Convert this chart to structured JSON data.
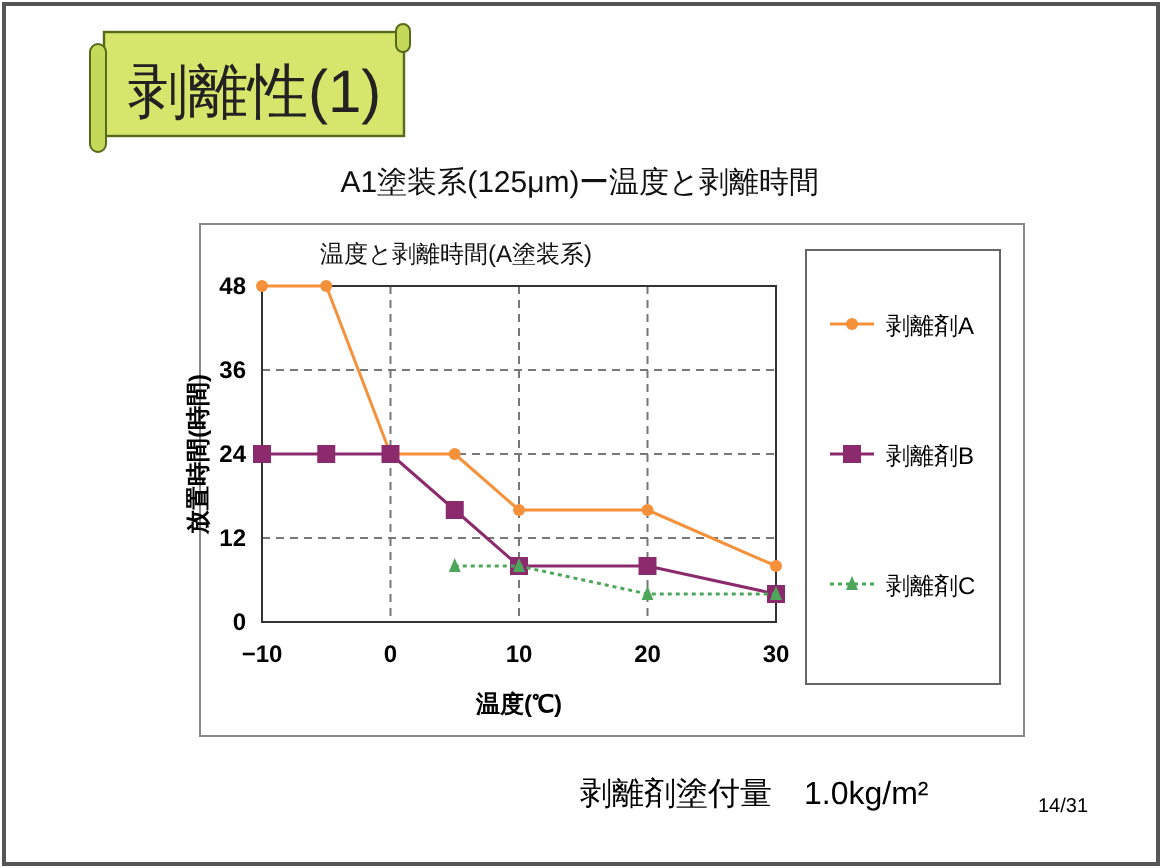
{
  "chart_data": {
    "type": "line",
    "title": "温度と剥離時間(A塗装系)",
    "subtitle": "A1塗装系(125μm)ー温度と剥離時間",
    "xlabel": "温度(℃)",
    "ylabel": "放置時間(時間)",
    "annotations": [
      "剥離性(1)",
      "剥離剤塗付量　1.0kg/m²",
      "14/31"
    ],
    "series": [
      {
        "name": "剥離剤A",
        "color": "#f5913a",
        "marker": "circle",
        "line_style": "solid",
        "x": [
          -10,
          -5,
          0,
          5,
          10,
          20,
          30
        ],
        "values": [
          48,
          48,
          24,
          24,
          16,
          16,
          8
        ]
      },
      {
        "name": "剥離剤B",
        "color": "#8c2a6e",
        "marker": "square",
        "line_style": "solid",
        "x": [
          -10,
          -5,
          0,
          5,
          10,
          20,
          30
        ],
        "values": [
          24,
          24,
          24,
          16,
          8,
          8,
          4
        ]
      },
      {
        "name": "剥離剤C",
        "color": "#4ea65a",
        "marker": "triangle",
        "line_style": "dotted",
        "x": [
          5,
          10,
          20,
          30
        ],
        "values": [
          8,
          8,
          4,
          4
        ]
      }
    ],
    "xlim": [
      -10,
      30
    ],
    "xticks": [
      -10,
      0,
      10,
      20,
      30
    ],
    "ylim": [
      0,
      48
    ],
    "yticks": [
      0,
      12,
      24,
      36,
      48
    ],
    "grid": true,
    "legend": "right"
  }
}
